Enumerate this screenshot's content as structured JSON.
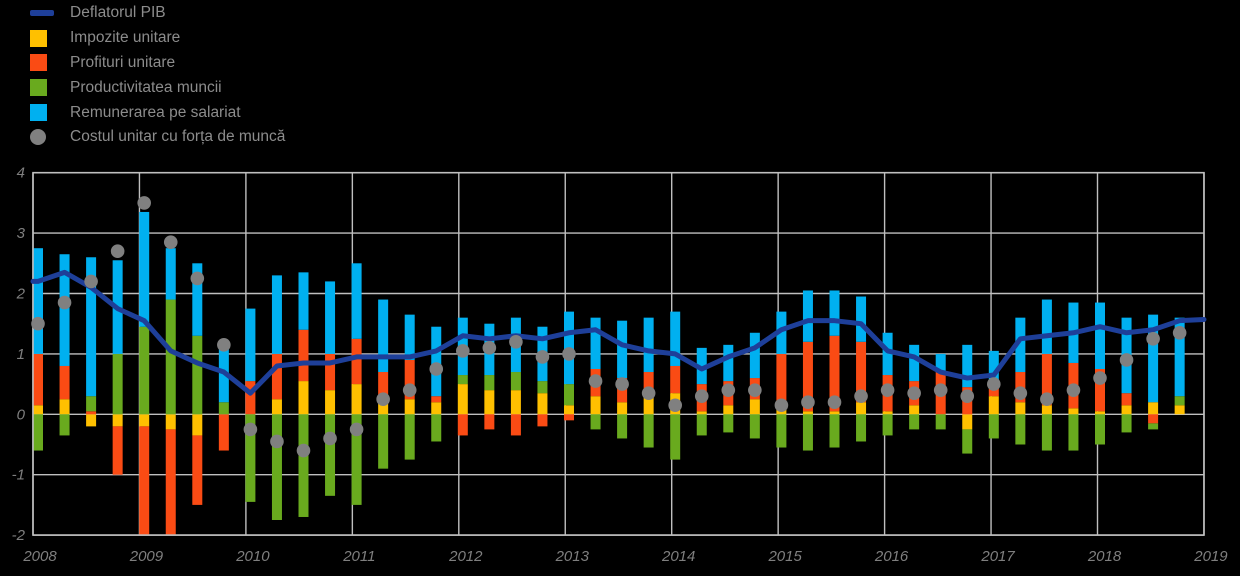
{
  "page": {
    "background": "#000000"
  },
  "legend": {
    "position": "top-left",
    "items": [
      {
        "label": "Deflatorul PIB",
        "marker": "line",
        "color": "#1E3F99"
      },
      {
        "label": "Impozite unitare",
        "marker": "square",
        "color": "#FFC000"
      },
      {
        "label": "Profituri unitare",
        "marker": "square",
        "color": "#FA4B14"
      },
      {
        "label": "Productivitatea muncii",
        "marker": "square",
        "color": "#69AA1E"
      },
      {
        "label": "Remunerarea pe salariat",
        "marker": "square",
        "color": "#00B0F0"
      },
      {
        "label": "Costul unitar cu forța de muncă",
        "marker": "circle",
        "color": "#808080"
      }
    ]
  },
  "chart_data": {
    "type": "bar",
    "subtype": "stacked-bars-with-line-and-dots",
    "grid": true,
    "gridline_color": "#BFBFBF",
    "axis_color": "#7F7F7F",
    "ylim": [
      -2,
      4
    ],
    "y_ticks": [
      4,
      3,
      2,
      1,
      0,
      -1,
      -2
    ],
    "x_tick_labels": [
      "2008",
      "2009",
      "2010",
      "2011",
      "2012",
      "2013",
      "2014",
      "2015",
      "2016",
      "2017",
      "2018",
      "2019"
    ],
    "categories": [
      "2008Q1",
      "2008Q2",
      "2008Q3",
      "2008Q4",
      "2009Q1",
      "2009Q2",
      "2009Q3",
      "2009Q4",
      "2010Q1",
      "2010Q2",
      "2010Q3",
      "2010Q4",
      "2011Q1",
      "2011Q2",
      "2011Q3",
      "2011Q4",
      "2012Q1",
      "2012Q2",
      "2012Q3",
      "2012Q4",
      "2013Q1",
      "2013Q2",
      "2013Q3",
      "2013Q4",
      "2014Q1",
      "2014Q2",
      "2014Q3",
      "2014Q4",
      "2015Q1",
      "2015Q2",
      "2015Q3",
      "2015Q4",
      "2016Q1",
      "2016Q2",
      "2016Q3",
      "2016Q4",
      "2017Q1",
      "2017Q2",
      "2017Q3",
      "2017Q4",
      "2018Q1",
      "2018Q2",
      "2018Q3",
      "2018Q4"
    ],
    "bar_series": [
      {
        "name": "Impozite unitare",
        "color": "#FFC000",
        "values": [
          0.15,
          0.25,
          -0.2,
          -0.2,
          -0.2,
          -0.25,
          -0.35,
          0.0,
          0.0,
          0.25,
          0.55,
          0.4,
          0.5,
          0.25,
          0.25,
          0.2,
          0.5,
          0.4,
          0.4,
          0.35,
          0.15,
          0.3,
          0.2,
          0.3,
          0.35,
          0.05,
          0.15,
          0.25,
          0.1,
          0.05,
          0.05,
          0.2,
          0.05,
          0.15,
          0.0,
          -0.25,
          0.3,
          0.2,
          0.15,
          0.1,
          0.05,
          0.15,
          0.2,
          0.15
        ]
      },
      {
        "name": "Profituri unitare",
        "color": "#FA4B14",
        "values": [
          0.85,
          0.55,
          0.05,
          -0.8,
          -1.8,
          -1.75,
          -1.15,
          -0.6,
          0.55,
          0.75,
          0.85,
          0.6,
          0.75,
          0.45,
          0.65,
          0.1,
          -0.35,
          -0.25,
          -0.35,
          -0.2,
          -0.1,
          0.45,
          0.4,
          0.4,
          0.45,
          0.45,
          0.4,
          0.35,
          0.9,
          1.15,
          1.25,
          1.0,
          0.6,
          0.4,
          0.7,
          0.45,
          0.2,
          0.5,
          0.85,
          0.75,
          0.7,
          0.2,
          -0.15,
          0.0
        ]
      },
      {
        "name": "Productivitatea muncii",
        "color": "#69AA1E",
        "values": [
          -0.6,
          -0.35,
          0.25,
          1.0,
          1.45,
          1.9,
          1.3,
          0.2,
          -1.45,
          -1.75,
          -1.7,
          -1.35,
          -1.5,
          -0.9,
          -0.75,
          -0.45,
          0.15,
          0.25,
          0.3,
          0.2,
          0.35,
          -0.25,
          -0.4,
          -0.55,
          -0.75,
          -0.35,
          -0.3,
          -0.4,
          -0.55,
          -0.6,
          -0.55,
          -0.45,
          -0.35,
          -0.25,
          -0.25,
          -0.4,
          -0.4,
          -0.5,
          -0.6,
          -0.6,
          -0.5,
          -0.3,
          -0.1,
          0.15
        ]
      },
      {
        "name": "Remunerarea pe salariat",
        "color": "#00B0F0",
        "values": [
          1.75,
          1.85,
          2.3,
          1.55,
          1.9,
          0.85,
          1.2,
          0.95,
          1.2,
          1.3,
          0.95,
          1.2,
          1.25,
          1.2,
          0.75,
          1.15,
          0.95,
          0.85,
          0.9,
          0.9,
          1.2,
          0.85,
          0.95,
          0.9,
          0.9,
          0.6,
          0.6,
          0.75,
          0.7,
          0.85,
          0.75,
          0.75,
          0.7,
          0.6,
          0.3,
          0.7,
          0.55,
          0.9,
          0.9,
          1.0,
          1.1,
          1.25,
          1.45,
          1.3
        ]
      }
    ],
    "line_series": {
      "name": "Deflatorul PIB",
      "color": "#1E3F99",
      "left_edge_value": 2.2,
      "right_edge_value": 1.57,
      "values": [
        2.2,
        2.35,
        2.1,
        1.75,
        1.55,
        1.05,
        0.85,
        0.7,
        0.35,
        0.8,
        0.85,
        0.85,
        0.95,
        0.95,
        0.95,
        1.05,
        1.3,
        1.25,
        1.3,
        1.25,
        1.35,
        1.4,
        1.15,
        1.05,
        1.0,
        0.75,
        0.95,
        1.1,
        1.4,
        1.55,
        1.55,
        1.5,
        1.05,
        0.95,
        0.7,
        0.6,
        0.65,
        1.25,
        1.3,
        1.35,
        1.45,
        1.35,
        1.4,
        1.55
      ]
    },
    "dot_series": {
      "name": "Costul unitar cu forța de muncă",
      "color": "#808080",
      "values": [
        1.5,
        1.85,
        2.2,
        2.7,
        3.5,
        2.85,
        2.25,
        1.15,
        -0.25,
        -0.45,
        -0.6,
        -0.4,
        -0.25,
        0.25,
        0.4,
        0.75,
        1.05,
        1.1,
        1.2,
        0.95,
        1.0,
        0.55,
        0.5,
        0.35,
        0.15,
        0.3,
        0.4,
        0.4,
        0.15,
        0.2,
        0.2,
        0.3,
        0.4,
        0.35,
        0.4,
        0.3,
        0.5,
        0.35,
        0.25,
        0.4,
        0.6,
        0.9,
        1.25,
        1.35
      ]
    }
  }
}
